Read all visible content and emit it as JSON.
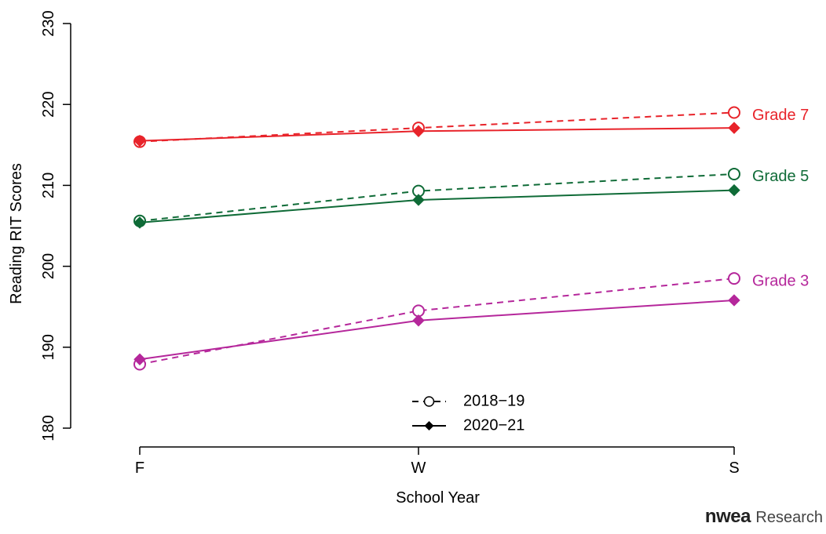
{
  "chart_data": {
    "type": "line",
    "categories": [
      "F",
      "W",
      "S"
    ],
    "xlabel": "School Year",
    "ylabel": "Reading RIT Scores",
    "ylim": [
      180,
      230
    ],
    "yticks": [
      180,
      190,
      200,
      210,
      220,
      230
    ],
    "grid": false,
    "legend": {
      "placement": "bottom-center",
      "entries": [
        {
          "label": "2018−19",
          "style": "dashed",
          "marker": "open-circle"
        },
        {
          "label": "2020−21",
          "style": "solid",
          "marker": "filled-diamond"
        }
      ]
    },
    "series": [
      {
        "name": "Grade 7",
        "year": "2018−19",
        "style": "dashed",
        "marker": "open-circle",
        "color": "#e8232a",
        "values": [
          215.4,
          217.1,
          219.0
        ]
      },
      {
        "name": "Grade 7",
        "year": "2020−21",
        "style": "solid",
        "marker": "filled-diamond",
        "color": "#e8232a",
        "values": [
          215.5,
          216.7,
          217.1
        ]
      },
      {
        "name": "Grade 5",
        "year": "2018−19",
        "style": "dashed",
        "marker": "open-circle",
        "color": "#0f6b37",
        "values": [
          205.6,
          209.3,
          211.4
        ]
      },
      {
        "name": "Grade 5",
        "year": "2020−21",
        "style": "solid",
        "marker": "filled-diamond",
        "color": "#0f6b37",
        "values": [
          205.4,
          208.2,
          209.4
        ]
      },
      {
        "name": "Grade 3",
        "year": "2018−19",
        "style": "dashed",
        "marker": "open-circle",
        "color": "#b5279b",
        "values": [
          187.9,
          194.5,
          198.5
        ]
      },
      {
        "name": "Grade 3",
        "year": "2020−21",
        "style": "solid",
        "marker": "filled-diamond",
        "color": "#b5279b",
        "values": [
          188.5,
          193.3,
          195.8
        ]
      }
    ],
    "labels": [
      {
        "text": "Grade 7",
        "color": "#e8232a"
      },
      {
        "text": "Grade 5",
        "color": "#0f6b37"
      },
      {
        "text": "Grade 3",
        "color": "#b5279b"
      }
    ]
  },
  "brand": {
    "logo": "nwea",
    "suffix": "Research"
  }
}
